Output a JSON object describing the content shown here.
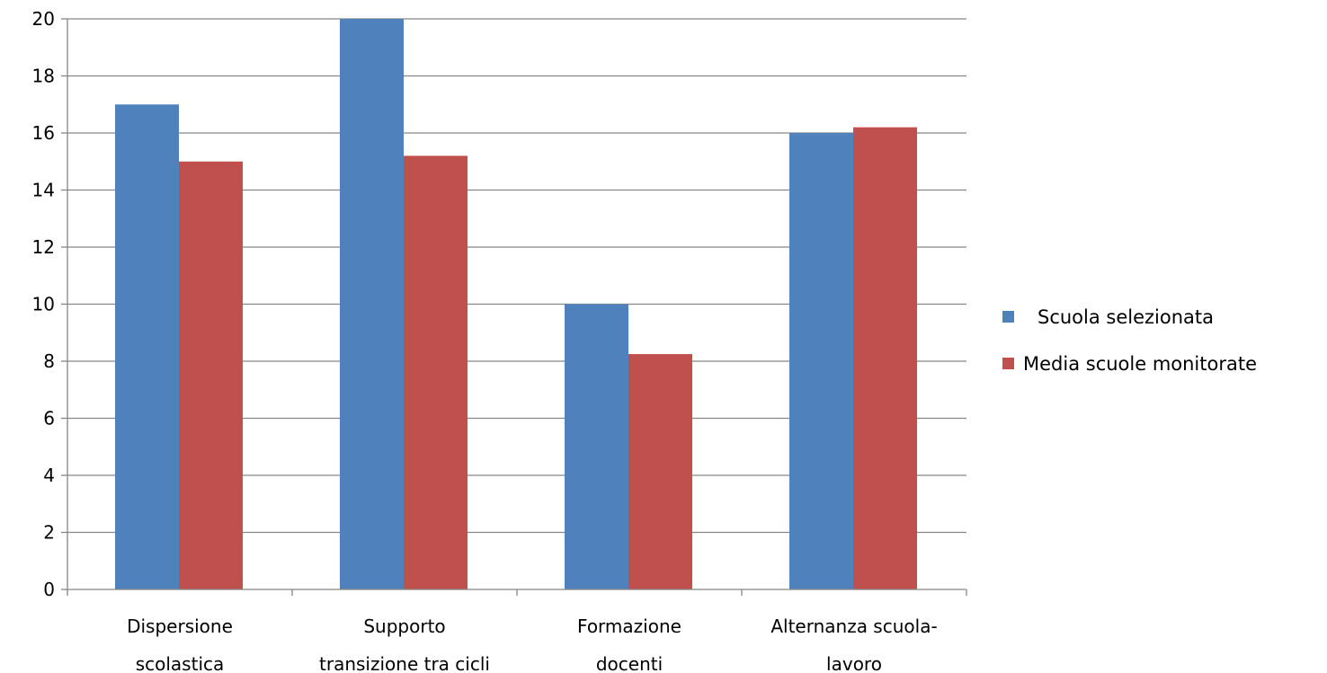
{
  "chart_data": {
    "type": "bar",
    "categories": [
      [
        "Dispersione",
        "scolastica"
      ],
      [
        "Supporto",
        "transizione tra cicli"
      ],
      [
        "Formazione",
        "docenti"
      ],
      [
        "Alternanza scuola-",
        "lavoro"
      ]
    ],
    "series": [
      {
        "name": "Scuola selezionata",
        "color": "#4F81BD",
        "values": [
          17,
          20,
          10,
          16
        ]
      },
      {
        "name": "Media scuole monitorate",
        "color": "#C0504D",
        "values": [
          15,
          15.2,
          8.25,
          16.2
        ]
      }
    ],
    "ylim": [
      0,
      20
    ],
    "yticks": [
      "0",
      "2",
      "4",
      "6",
      "8",
      "10",
      "12",
      "14",
      "16",
      "18",
      "20"
    ],
    "grid": true,
    "legend_position": "right",
    "colors": {
      "gridline": "#868686",
      "axis": "#868686"
    }
  }
}
